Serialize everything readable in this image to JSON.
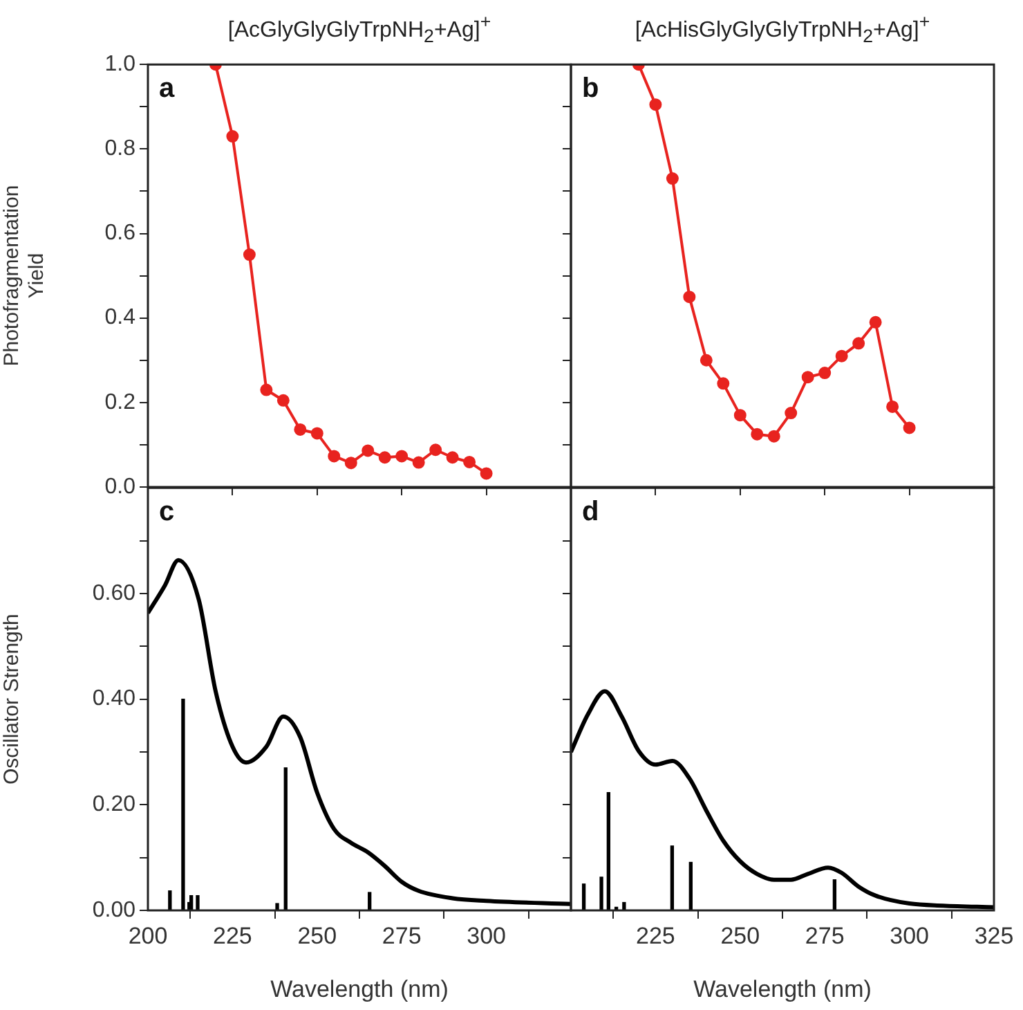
{
  "chart_data": [
    {
      "type": "line",
      "title": "[AcGlyGlyGlyTrpNH$_{2}$+Ag]$^{+}$",
      "ylabel": "Photofragmentation Yield",
      "annotations": [
        "a"
      ],
      "tick_labels": "y",
      "grid": false,
      "legend": false,
      "marker": "circle",
      "xlim": [
        200,
        325
      ],
      "xticks": [
        {
          "value": 200,
          "label": null
        },
        {
          "value": 225,
          "label": null
        },
        {
          "value": 250,
          "label": null
        },
        {
          "value": 275,
          "label": null
        },
        {
          "value": 300,
          "label": null
        },
        {
          "value": 325,
          "label": null
        }
      ],
      "ylim": [
        0,
        1
      ],
      "yticks": [
        {
          "value": 0,
          "label": "0.0"
        },
        {
          "value": 0.1,
          "label": null
        },
        {
          "value": 0.2,
          "label": "0.2"
        },
        {
          "value": 0.3,
          "label": null
        },
        {
          "value": 0.4,
          "label": "0.4"
        },
        {
          "value": 0.5,
          "label": null
        },
        {
          "value": 0.6,
          "label": "0.6"
        },
        {
          "value": 0.7,
          "label": null
        },
        {
          "value": 0.8,
          "label": "0.8"
        },
        {
          "value": 0.9,
          "label": null
        },
        {
          "value": 1,
          "label": "1.0"
        }
      ],
      "x": [
        220,
        225,
        230,
        235,
        240,
        245,
        250,
        255,
        260,
        265,
        270,
        275,
        280,
        285,
        290,
        295,
        300
      ],
      "series": [
        {
          "color": "#e8231f",
          "values": [
            1.0,
            0.83,
            0.55,
            0.23,
            0.205,
            0.136,
            0.127,
            0.073,
            0.057,
            0.086,
            0.07,
            0.073,
            0.058,
            0.088,
            0.07,
            0.059,
            0.032
          ]
        }
      ]
    },
    {
      "type": "line",
      "title": "[AcHisGlyGlyGlyTrpNH$_{2}$+Ag]$^{+}$",
      "annotations": [
        "b"
      ],
      "tick_labels": false,
      "grid": false,
      "legend": false,
      "marker": "circle",
      "xlim": [
        200,
        325
      ],
      "xticks": [
        {
          "value": 200,
          "label": null
        },
        {
          "value": 225,
          "label": null
        },
        {
          "value": 250,
          "label": null
        },
        {
          "value": 275,
          "label": null
        },
        {
          "value": 300,
          "label": null
        },
        {
          "value": 325,
          "label": null
        }
      ],
      "ylim": [
        0,
        1
      ],
      "yticks": [
        {
          "value": 0,
          "label": null
        },
        {
          "value": 0.1,
          "label": null
        },
        {
          "value": 0.2,
          "label": null
        },
        {
          "value": 0.3,
          "label": null
        },
        {
          "value": 0.4,
          "label": null
        },
        {
          "value": 0.5,
          "label": null
        },
        {
          "value": 0.6,
          "label": null
        },
        {
          "value": 0.7,
          "label": null
        },
        {
          "value": 0.8,
          "label": null
        },
        {
          "value": 0.9,
          "label": null
        },
        {
          "value": 1,
          "label": null
        }
      ],
      "x": [
        220,
        225,
        230,
        235,
        240,
        245,
        250,
        255,
        260,
        265,
        270,
        275,
        280,
        285,
        290,
        295,
        300
      ],
      "series": [
        {
          "color": "#e8231f",
          "values": [
            1.0,
            0.905,
            0.73,
            0.45,
            0.3,
            0.245,
            0.17,
            0.125,
            0.12,
            0.175,
            0.26,
            0.27,
            0.31,
            0.34,
            0.39,
            0.19,
            0.14
          ]
        }
      ]
    },
    {
      "type": "line",
      "xlabel": "Wavelength (nm)",
      "ylabel": "Oscillator Strength",
      "annotations": [
        "c"
      ],
      "grid": false,
      "legend": false,
      "marker": "none",
      "xlim": [
        200,
        325
      ],
      "xticks": [
        200,
        225,
        250,
        275,
        300,
        {
          "value": 325,
          "label": null
        }
      ],
      "ylim": [
        0,
        0.8
      ],
      "yticks": [
        {
          "value": 0,
          "label": "0.00"
        },
        {
          "value": 0.1,
          "label": null
        },
        {
          "value": 0.2,
          "label": "0.20"
        },
        {
          "value": 0.3,
          "label": null
        },
        {
          "value": 0.4,
          "label": "0.40"
        },
        {
          "value": 0.5,
          "label": null
        },
        {
          "value": 0.6,
          "label": "0.60"
        },
        {
          "value": 0.7,
          "label": null
        }
      ],
      "series": [
        {
          "type": "line",
          "color": "#000000",
          "x": [
            200,
            205,
            209,
            215,
            220,
            225,
            229,
            235,
            240,
            245,
            250,
            255,
            260,
            265,
            270,
            275,
            280,
            290,
            300,
            325
          ],
          "values": [
            0.563,
            0.615,
            0.663,
            0.589,
            0.415,
            0.31,
            0.28,
            0.31,
            0.367,
            0.328,
            0.223,
            0.154,
            0.128,
            0.11,
            0.084,
            0.054,
            0.037,
            0.023,
            0.018,
            0.012
          ]
        },
        {
          "type": "bar",
          "color": "#000000",
          "x": [
            206.5,
            210.4,
            212.2,
            212.8,
            214.7,
            238.2,
            240.7,
            265.5
          ],
          "values": [
            0.037,
            0.4,
            0.015,
            0.028,
            0.028,
            0.013,
            0.27,
            0.034
          ]
        }
      ]
    },
    {
      "type": "line",
      "xlabel": "Wavelength (nm)",
      "annotations": [
        "d"
      ],
      "tick_labels": "x",
      "grid": false,
      "legend": false,
      "marker": "none",
      "xlim": [
        200,
        325
      ],
      "xticks": [
        {
          "value": 200,
          "label": null
        },
        225,
        250,
        275,
        300,
        325
      ],
      "ylim": [
        0,
        0.8
      ],
      "yticks": [
        {
          "value": 0,
          "label": null
        },
        {
          "value": 0.1,
          "label": null
        },
        {
          "value": 0.2,
          "label": null
        },
        {
          "value": 0.3,
          "label": null
        },
        {
          "value": 0.4,
          "label": null
        },
        {
          "value": 0.5,
          "label": null
        },
        {
          "value": 0.6,
          "label": null
        },
        {
          "value": 0.7,
          "label": null
        }
      ],
      "series": [
        {
          "type": "line",
          "color": "#000000",
          "x": [
            200,
            205,
            210,
            215,
            220,
            225,
            230,
            235,
            240,
            245,
            250,
            255,
            260,
            265,
            270,
            276,
            280,
            285,
            290,
            300,
            310,
            325
          ],
          "values": [
            0.3,
            0.371,
            0.415,
            0.367,
            0.302,
            0.276,
            0.283,
            0.25,
            0.189,
            0.132,
            0.093,
            0.069,
            0.058,
            0.058,
            0.069,
            0.081,
            0.071,
            0.045,
            0.028,
            0.013,
            0.009,
            0.006
          ]
        },
        {
          "type": "bar",
          "color": "#000000",
          "x": [
            203.8,
            209,
            211.1,
            213.4,
            215.7,
            229.9,
            235.4,
            277.9
          ],
          "values": [
            0.05,
            0.063,
            0.223,
            0.006,
            0.015,
            0.122,
            0.091,
            0.058
          ]
        }
      ]
    }
  ]
}
